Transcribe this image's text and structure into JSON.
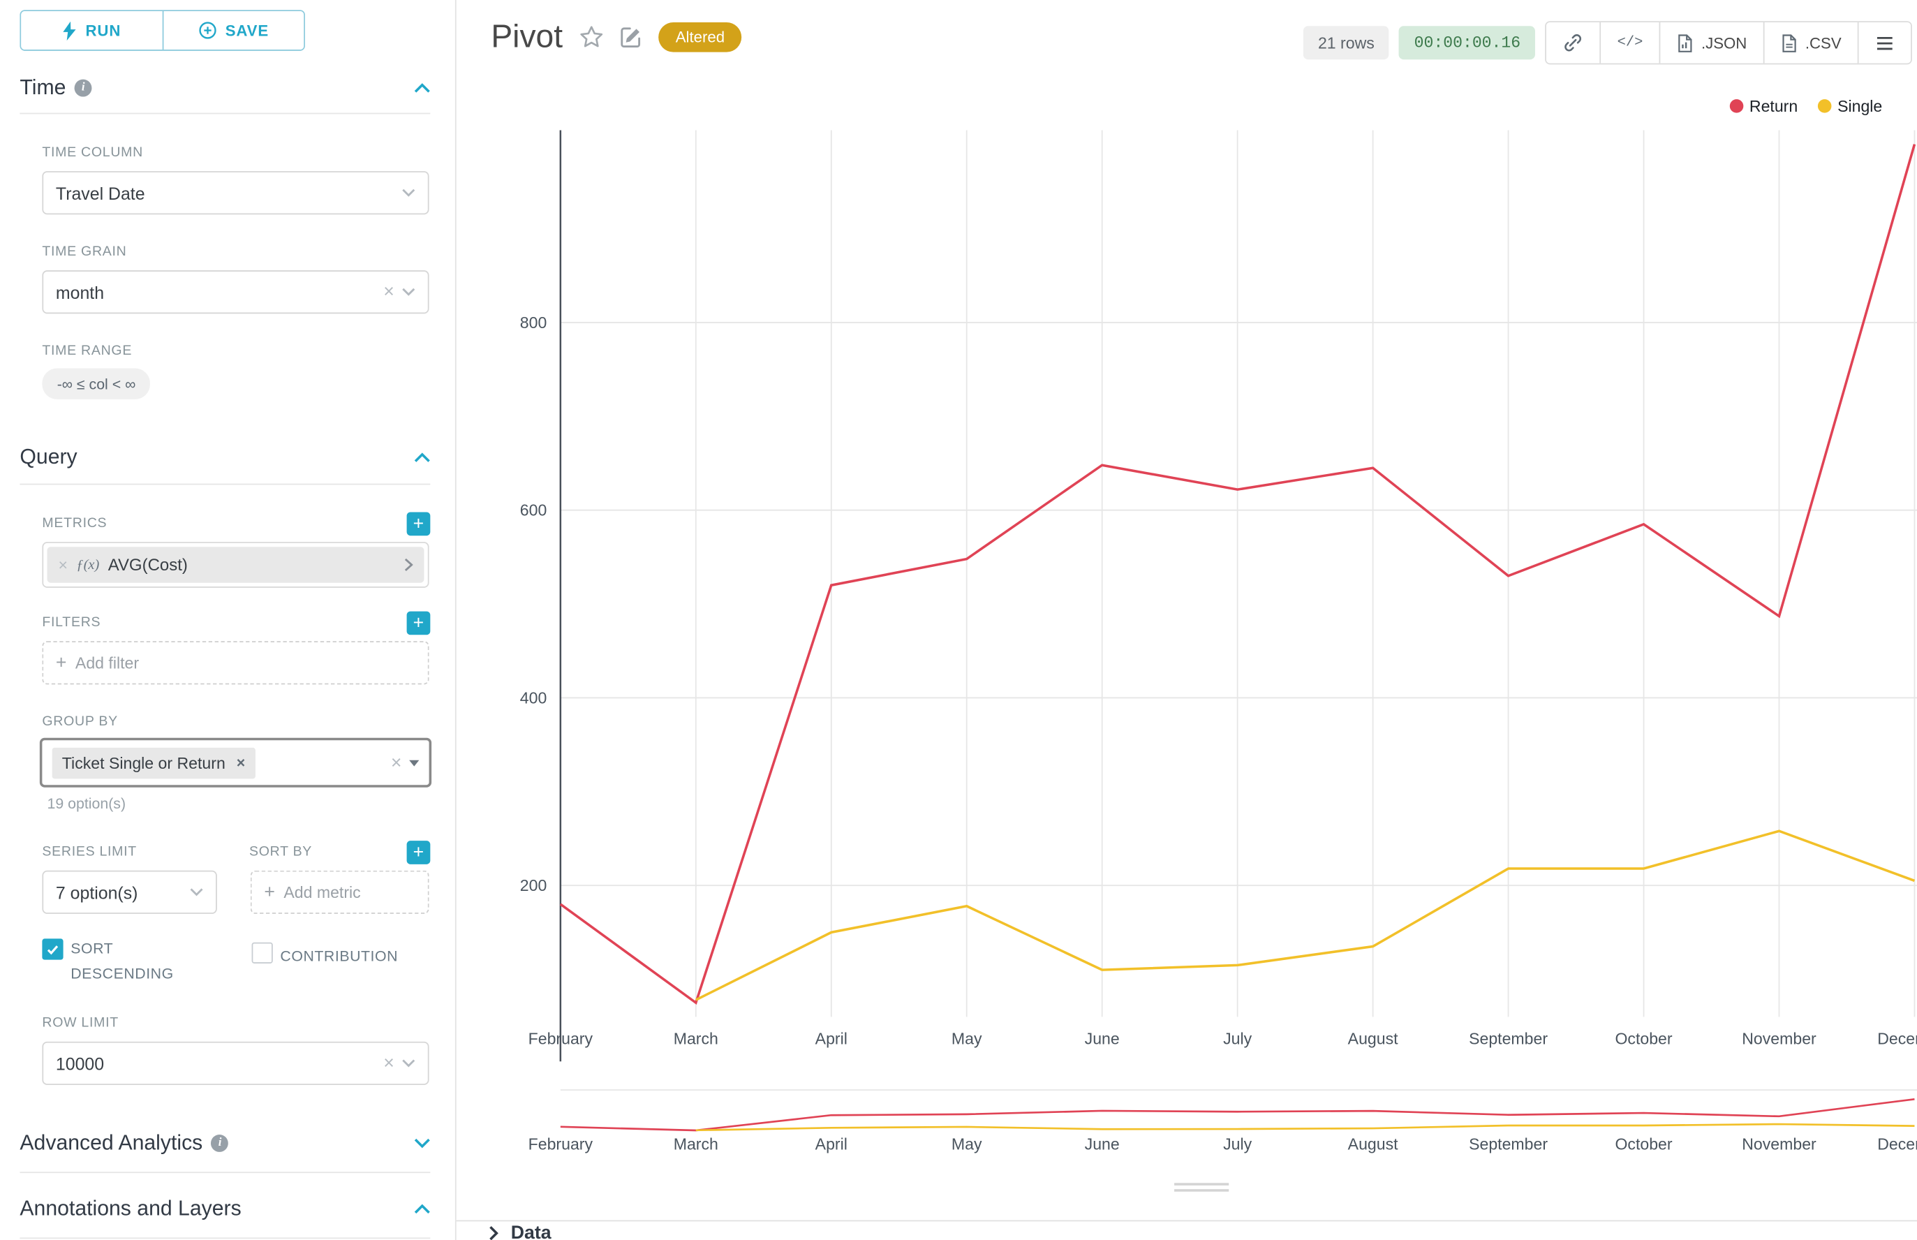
{
  "colors": {
    "accent": "#20a7c9",
    "altered_badge_bg": "#d3a219",
    "altered_badge_text": "#ffffff",
    "timer_badge_bg": "#d6ebdc",
    "timer_badge_text": "#3d7a4c",
    "rows_badge_bg": "#efefef",
    "rows_badge_text": "#5b6269"
  },
  "actions": {
    "run": "RUN",
    "save": "SAVE"
  },
  "time": {
    "title": "Time",
    "column_label": "TIME COLUMN",
    "column_value": "Travel Date",
    "grain_label": "TIME GRAIN",
    "grain_value": "month",
    "range_label": "TIME RANGE",
    "range_value": "-∞ ≤ col < ∞"
  },
  "query": {
    "title": "Query",
    "metrics_label": "METRICS",
    "metric_fx": "ƒ(x)",
    "metric_name": "AVG(Cost)",
    "filters_label": "FILTERS",
    "add_filter_placeholder": "Add filter",
    "group_by_label": "GROUP BY",
    "group_by_value": "Ticket Single or Return",
    "group_by_hint": "19 option(s)",
    "series_limit_label": "SERIES LIMIT",
    "series_limit_value": "7 option(s)",
    "sort_by_label": "SORT BY",
    "add_metric_placeholder": "Add metric",
    "sort_descending_label": "SORT DESCENDING",
    "contribution_label": "CONTRIBUTION",
    "row_limit_label": "ROW LIMIT",
    "row_limit_value": "10000"
  },
  "advanced": {
    "title": "Advanced Analytics"
  },
  "annotations": {
    "title": "Annotations and Layers"
  },
  "header": {
    "title": "Pivot",
    "altered_badge": "Altered",
    "rows_badge": "21 rows",
    "timer": "00:00:00.16",
    "code_glyph": "</>",
    "json_label": ".JSON",
    "csv_label": ".CSV"
  },
  "data_panel": {
    "title": "Data"
  },
  "chart_data": {
    "type": "line",
    "title": "Pivot",
    "x": [
      "February",
      "March",
      "April",
      "May",
      "June",
      "July",
      "August",
      "September",
      "October",
      "November",
      "December"
    ],
    "series": [
      {
        "name": "Return",
        "color": "#e04355",
        "values": [
          180,
          75,
          520,
          548,
          648,
          622,
          645,
          530,
          585,
          487,
          990
        ]
      },
      {
        "name": "Single",
        "color": "#f2c029",
        "values": [
          null,
          78,
          150,
          178,
          110,
          115,
          135,
          218,
          218,
          258,
          205
        ]
      }
    ],
    "yticks": [
      200,
      400,
      600,
      800
    ],
    "ylim": [
      60,
      1005
    ],
    "grid": true,
    "legend_position": "top-right",
    "has_mini_preview": true
  }
}
